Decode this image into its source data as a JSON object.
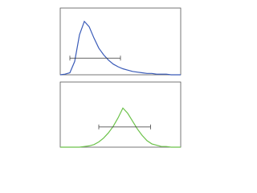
{
  "chart_data": [
    {
      "type": "line",
      "color": "#3a5bb8",
      "x": [
        0,
        4,
        8,
        12,
        16,
        20,
        24,
        28,
        32,
        36,
        40,
        44,
        48,
        52,
        56,
        60,
        64,
        68,
        72,
        76,
        80,
        84,
        88,
        92,
        96,
        100
      ],
      "values": [
        0,
        1,
        3,
        20,
        60,
        80,
        72,
        55,
        40,
        30,
        22,
        16,
        12,
        9,
        7,
        5,
        4,
        3,
        2,
        2,
        1,
        1,
        1,
        0,
        0,
        0
      ],
      "xlim": [
        0,
        100
      ],
      "ylim": [
        0,
        100
      ],
      "gate": {
        "x": [
          8,
          50
        ],
        "y": 25
      }
    },
    {
      "type": "line",
      "color": "#6cc24a",
      "x": [
        0,
        4,
        8,
        12,
        16,
        20,
        24,
        28,
        32,
        36,
        40,
        44,
        48,
        52,
        56,
        60,
        64,
        68,
        72,
        76,
        80,
        84,
        88,
        92,
        96,
        100
      ],
      "values": [
        0,
        0,
        0,
        0,
        0,
        1,
        2,
        4,
        8,
        14,
        22,
        32,
        45,
        60,
        52,
        40,
        28,
        18,
        10,
        5,
        3,
        1,
        1,
        0,
        0,
        0
      ],
      "xlim": [
        0,
        100
      ],
      "ylim": [
        0,
        100
      ],
      "gate": {
        "x": [
          32,
          75
        ],
        "y": 31
      }
    }
  ]
}
